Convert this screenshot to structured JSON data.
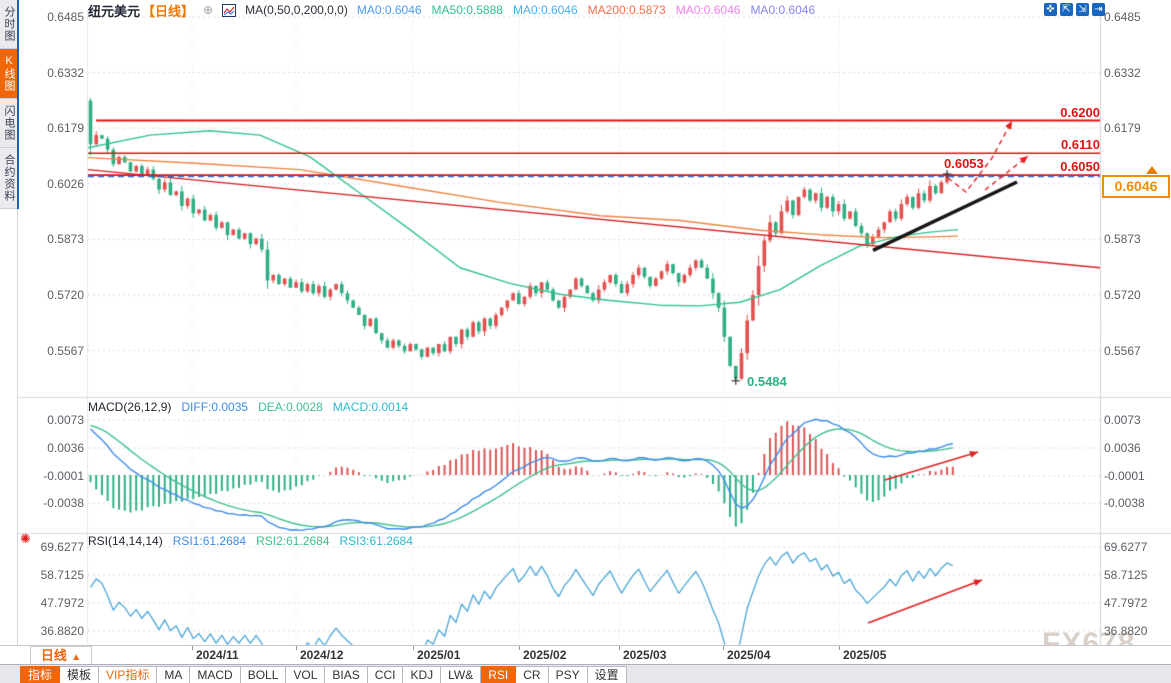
{
  "window": {
    "watermark": "FX678"
  },
  "sidebar": {
    "tabs": [
      {
        "label": "分时图",
        "active": false
      },
      {
        "label": "K线图",
        "active": true
      },
      {
        "label": "闪电图",
        "active": false
      },
      {
        "label": "合约资料",
        "active": false
      }
    ]
  },
  "header": {
    "symbol": "纽元美元",
    "timeframe_tag": "【日线】",
    "add_icon": "⊕",
    "ma_title": "MA(0,50,0,200,0,0)",
    "ma_values": [
      {
        "label": "MA0:0.6046",
        "color": "#4a9cf0"
      },
      {
        "label": "MA50:0.5888",
        "color": "#2fc28f"
      },
      {
        "label": "MA0:0.6046",
        "color": "#45b0f0"
      },
      {
        "label": "MA200:0.5873",
        "color": "#f2714b"
      },
      {
        "label": "MA0:0.6046",
        "color": "#ef82ef"
      },
      {
        "label": "MA0:0.6046",
        "color": "#8585f0"
      }
    ],
    "toolbar_icons": [
      {
        "name": "pan-icon",
        "glyph": "✜"
      },
      {
        "name": "fit-left-axis-icon",
        "glyph": "⇱"
      },
      {
        "name": "fit-right-axis-icon",
        "glyph": "⇲"
      },
      {
        "name": "exit-chart-icon",
        "glyph": "⇥"
      }
    ]
  },
  "main_chart": {
    "y_ticks": [
      "0.6485",
      "0.6332",
      "0.6179",
      "0.6026",
      "0.5873",
      "0.5720",
      "0.5567"
    ],
    "levels": [
      {
        "value": 0.62,
        "label": "0.6200"
      },
      {
        "value": 0.611,
        "label": "0.6110"
      },
      {
        "value": 0.605,
        "label": "0.6050"
      }
    ],
    "price_label": "0.6046",
    "price_value": 0.6046,
    "annotation_high": "0.6053",
    "annotation_low": "0.5484"
  },
  "macd_panel": {
    "title": "MACD(26,12,9)",
    "values": [
      {
        "label": "DIFF:0.0035",
        "color": "#3f8ce8"
      },
      {
        "label": "DEA:0.0028",
        "color": "#3fc08c"
      },
      {
        "label": "MACD:0.0014",
        "color": "#2fb9d0"
      }
    ],
    "y_ticks": [
      "0.0073",
      "0.0036",
      "-0.0001",
      "-0.0038"
    ]
  },
  "rsi_panel": {
    "title": "RSI(14,14,14)",
    "values": [
      {
        "label": "RSI1:61.2684",
        "color": "#3f8ce8"
      },
      {
        "label": "RSI2:61.2684",
        "color": "#3fc08c"
      },
      {
        "label": "RSI3:61.2684",
        "color": "#2fb9d0"
      }
    ],
    "y_ticks": [
      "69.6277",
      "58.7125",
      "47.7972",
      "36.8820"
    ],
    "settings_icon": "✺"
  },
  "x_axis": {
    "labels": [
      "2024/11",
      "2024/12",
      "2025/01",
      "2025/02",
      "2025/03",
      "2025/04",
      "2025/05"
    ],
    "period_button": {
      "label": "日线",
      "arrow": "▲"
    }
  },
  "bottom_tabs": [
    {
      "label": "指标",
      "style": "active"
    },
    {
      "label": "模板",
      "style": ""
    },
    {
      "label": "VIP指标",
      "style": "vip"
    },
    {
      "label": "MA",
      "style": ""
    },
    {
      "label": "MACD",
      "style": ""
    },
    {
      "label": "BOLL",
      "style": ""
    },
    {
      "label": "VOL",
      "style": ""
    },
    {
      "label": "BIAS",
      "style": ""
    },
    {
      "label": "CCI",
      "style": ""
    },
    {
      "label": "KDJ",
      "style": ""
    },
    {
      "label": "LW&",
      "style": ""
    },
    {
      "label": "RSI",
      "style": "active"
    },
    {
      "label": "CR",
      "style": ""
    },
    {
      "label": "PSY",
      "style": ""
    },
    {
      "label": "设置",
      "style": ""
    }
  ],
  "colors": {
    "candle_up": "#e25050",
    "candle_down": "#2fae85",
    "ma_fast_line": "#2fc28f",
    "ma_slow_line": "#ef8440",
    "level_red": "#e01212",
    "trend_red": "#d42020",
    "trend_black": "#151515",
    "price_dash_blue": "#2a6fd8",
    "macd_diff": "#3f8ce8",
    "macd_dea": "#3fc08c",
    "hist_up": "#d95555",
    "hist_down": "#2fae85",
    "rsi_line": "#4aa5d8",
    "grid": "#dcdce4"
  },
  "chart_data": {
    "type": "candlestick+indicators",
    "symbol": "纽元美元",
    "period": "日线",
    "x_labels": [
      "2024/11",
      "2024/12",
      "2025/01",
      "2025/02",
      "2025/03",
      "2025/04",
      "2025/05"
    ],
    "main": {
      "y_range": [
        0.5484,
        0.6485
      ],
      "first_open": 0.6255,
      "pre_closes": [
        0.59,
        0.592,
        0.591,
        0.594,
        0.596,
        0.595,
        0.598,
        0.6,
        0.599,
        0.602,
        0.604,
        0.603,
        0.606,
        0.608,
        0.607,
        0.61,
        0.612,
        0.611,
        0.614,
        0.616,
        0.615,
        0.618,
        0.62,
        0.619,
        0.622,
        0.624,
        0.623,
        0.625,
        0.626,
        0.6255
      ],
      "closes": [
        0.6135,
        0.616,
        0.615,
        0.612,
        0.608,
        0.61,
        0.6085,
        0.606,
        0.6075,
        0.605,
        0.6065,
        0.604,
        0.601,
        0.603,
        0.5995,
        0.6005,
        0.5965,
        0.5985,
        0.5945,
        0.5955,
        0.5925,
        0.594,
        0.5905,
        0.592,
        0.5885,
        0.59,
        0.5875,
        0.589,
        0.586,
        0.5875,
        0.5845,
        0.576,
        0.5775,
        0.575,
        0.5765,
        0.574,
        0.5755,
        0.573,
        0.575,
        0.5725,
        0.5745,
        0.5715,
        0.5735,
        0.575,
        0.5725,
        0.5705,
        0.5685,
        0.5665,
        0.5635,
        0.5655,
        0.5615,
        0.5595,
        0.5575,
        0.5595,
        0.558,
        0.5565,
        0.5585,
        0.557,
        0.555,
        0.5575,
        0.556,
        0.5585,
        0.5565,
        0.5605,
        0.5585,
        0.5625,
        0.5605,
        0.5645,
        0.562,
        0.5655,
        0.5635,
        0.5665,
        0.5685,
        0.5705,
        0.5725,
        0.5695,
        0.5715,
        0.5745,
        0.5725,
        0.5755,
        0.5735,
        0.5705,
        0.5685,
        0.5715,
        0.5735,
        0.5765,
        0.5745,
        0.5725,
        0.5705,
        0.5735,
        0.5755,
        0.5775,
        0.575,
        0.5725,
        0.575,
        0.5775,
        0.5795,
        0.577,
        0.5745,
        0.5765,
        0.5785,
        0.5805,
        0.578,
        0.5755,
        0.5775,
        0.5795,
        0.5815,
        0.5795,
        0.5765,
        0.5725,
        0.5685,
        0.5605,
        0.5525,
        0.549,
        0.556,
        0.565,
        0.572,
        0.58,
        0.587,
        0.592,
        0.589,
        0.595,
        0.598,
        0.594,
        0.599,
        0.601,
        0.598,
        0.6,
        0.596,
        0.599,
        0.595,
        0.597,
        0.593,
        0.595,
        0.591,
        0.589,
        0.586,
        0.588,
        0.59,
        0.592,
        0.595,
        0.593,
        0.597,
        0.599,
        0.596,
        0.6,
        0.598,
        0.602,
        0.6,
        0.603,
        0.6053,
        0.6046
      ],
      "overrides": {
        "0": {
          "high": 0.6262
        },
        "113": {
          "low": 0.5484
        },
        "150": {
          "high": 0.6053
        }
      },
      "levels": [
        0.62,
        0.611,
        0.605
      ],
      "price_line": 0.6046,
      "ma_fast_points": [
        [
          88,
          0.6125
        ],
        [
          150,
          0.616
        ],
        [
          210,
          0.6172
        ],
        [
          260,
          0.616
        ],
        [
          310,
          0.61
        ],
        [
          360,
          0.6
        ],
        [
          410,
          0.59
        ],
        [
          460,
          0.5795
        ],
        [
          510,
          0.5752
        ],
        [
          560,
          0.5722
        ],
        [
          610,
          0.5705
        ],
        [
          660,
          0.5692
        ],
        [
          700,
          0.569
        ],
        [
          740,
          0.57
        ],
        [
          780,
          0.5735
        ],
        [
          820,
          0.58
        ],
        [
          860,
          0.5855
        ],
        [
          900,
          0.5882
        ],
        [
          930,
          0.5893
        ],
        [
          958,
          0.59
        ]
      ],
      "ma_slow_points": [
        [
          88,
          0.6098
        ],
        [
          200,
          0.6082
        ],
        [
          300,
          0.6065
        ],
        [
          400,
          0.602
        ],
        [
          500,
          0.5975
        ],
        [
          600,
          0.5938
        ],
        [
          680,
          0.5925
        ],
        [
          760,
          0.5898
        ],
        [
          820,
          0.5886
        ],
        [
          880,
          0.5878
        ],
        [
          930,
          0.588
        ],
        [
          958,
          0.5882
        ]
      ],
      "trendline_down": {
        "from": [
          88,
          0.6065
        ],
        "to": [
          1100,
          0.5795
        ]
      },
      "trendline_up_black": {
        "from": [
          873,
          0.5843
        ],
        "to": [
          1017,
          0.6031
        ]
      },
      "projection_arrows": [
        [
          [
            948,
            178
          ],
          [
            966,
            192
          ],
          [
            992,
            158
          ],
          [
            1012,
            121
          ]
        ],
        [
          [
            985,
            190
          ],
          [
            1028,
            156
          ]
        ]
      ]
    },
    "macd": {
      "params": [
        26,
        12,
        9
      ],
      "y_ticks": [
        0.0073,
        0.0036,
        -0.0001,
        -0.0038
      ],
      "arrow": [
        [
          885,
          480
        ],
        [
          978,
          452
        ]
      ]
    },
    "rsi": {
      "params": [
        14,
        14,
        14
      ],
      "y_ticks": [
        69.6277,
        58.7125,
        47.7972,
        36.882
      ],
      "arrow": [
        [
          868,
          623
        ],
        [
          982,
          580
        ]
      ]
    }
  }
}
